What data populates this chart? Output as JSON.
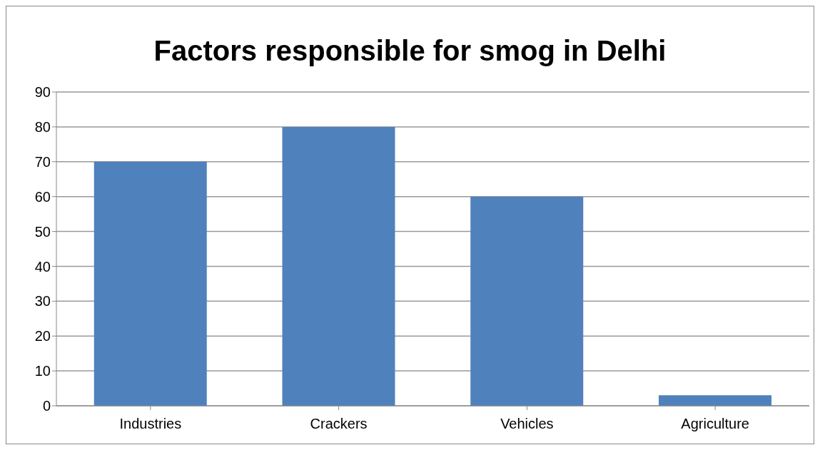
{
  "chart_data": {
    "type": "bar",
    "title": "Factors responsible for smog in Delhi",
    "categories": [
      "Industries",
      "Crackers",
      "Vehicles",
      "Agriculture"
    ],
    "values": [
      70,
      80,
      60,
      3
    ],
    "color": "#4f81bd",
    "ylim": [
      0,
      90
    ],
    "yticks": [
      0,
      10,
      20,
      30,
      40,
      50,
      60,
      70,
      80,
      90
    ],
    "grid": "y",
    "legend": false
  }
}
